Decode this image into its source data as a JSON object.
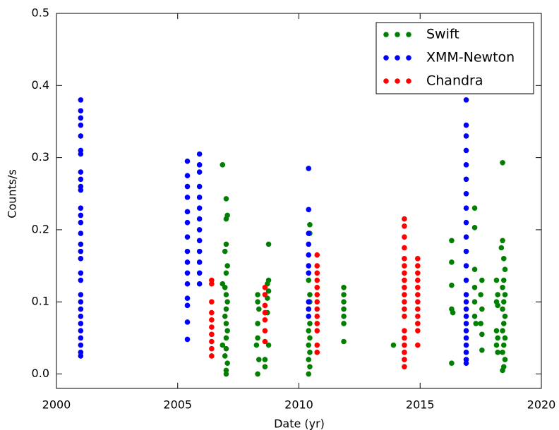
{
  "chart_data": {
    "type": "scatter",
    "xlabel": "Date (yr)",
    "ylabel": "Counts/s",
    "xlim": [
      2000,
      2020
    ],
    "xticks": [
      2000,
      2005,
      2010,
      2015,
      2020
    ],
    "ylim": [
      -0.02,
      0.5
    ],
    "yticks": [
      {
        "value": 0,
        "label": "0.0"
      },
      0.1,
      0.2,
      0.3,
      0.4,
      0.5
    ],
    "grid": false,
    "legend": "upper right",
    "series": [
      {
        "name": "Swift",
        "color": "#008000",
        "x": [
          2006.85,
          2007.0,
          2007.05,
          2007.0,
          2007.0,
          2006.95,
          2007.05,
          2007.0,
          2006.85,
          2006.95,
          2007.0,
          2007.05,
          2007.0,
          2006.95,
          2007.0,
          2007.05,
          2007.0,
          2006.85,
          2007.0,
          2006.95,
          2007.05,
          2007.0,
          2007.0,
          2008.3,
          2008.3,
          2008.35,
          2008.3,
          2008.3,
          2008.25,
          2008.35,
          2008.3,
          2008.75,
          2008.75,
          2008.7,
          2008.75,
          2008.7,
          2008.7,
          2008.75,
          2008.6,
          2008.6,
          2010.45,
          2010.45,
          2010.4,
          2010.45,
          2010.45,
          2010.4,
          2010.45,
          2010.4,
          2010.45,
          2010.4,
          2010.45,
          2010.4,
          2010.45,
          2010.4,
          2011.85,
          2011.85,
          2011.85,
          2011.85,
          2011.85,
          2011.85,
          2011.85,
          2013.9,
          2016.3,
          2016.3,
          2016.3,
          2016.3,
          2016.35,
          2016.3,
          2017.25,
          2017.25,
          2017.25,
          2017.25,
          2017.25,
          2017.25,
          2017.3,
          2017.55,
          2017.5,
          2017.55,
          2017.5,
          2017.55,
          2017.55,
          2018.15,
          2018.2,
          2018.15,
          2018.2,
          2018.15,
          2018.2,
          2018.15,
          2018.2,
          2018.4,
          2018.4,
          2018.35,
          2018.45,
          2018.5,
          2018.45,
          2018.4,
          2018.5,
          2018.45,
          2018.4,
          2018.5,
          2018.45,
          2018.4,
          2018.5,
          2018.45,
          2018.4,
          2018.5,
          2018.45,
          2018.4
        ],
        "values": [
          0.29,
          0.243,
          0.22,
          0.215,
          0.18,
          0.17,
          0.15,
          0.14,
          0.125,
          0.12,
          0.11,
          0.1,
          0.09,
          0.08,
          0.07,
          0.06,
          0.05,
          0.04,
          0.035,
          0.025,
          0.015,
          0.005,
          0,
          0.11,
          0.1,
          0.09,
          0.07,
          0.05,
          0.04,
          0.02,
          0,
          0.18,
          0.13,
          0.125,
          0.115,
          0.105,
          0.085,
          0.04,
          0.02,
          0.01,
          0.207,
          0.195,
          0.13,
          0.11,
          0.1,
          0.09,
          0.07,
          0.06,
          0.05,
          0.04,
          0.03,
          0.02,
          0.01,
          0,
          0.12,
          0.11,
          0.1,
          0.09,
          0.08,
          0.07,
          0.045,
          0.04,
          0.185,
          0.155,
          0.123,
          0.09,
          0.085,
          0.015,
          0.23,
          0.203,
          0.145,
          0.12,
          0.1,
          0.08,
          0.07,
          0.13,
          0.11,
          0.09,
          0.07,
          0.055,
          0.033,
          0.13,
          0.11,
          0.1,
          0.095,
          0.06,
          0.05,
          0.04,
          0.03,
          0.293,
          0.185,
          0.175,
          0.16,
          0.145,
          0.13,
          0.12,
          0.11,
          0.1,
          0.09,
          0.08,
          0.07,
          0.06,
          0.05,
          0.04,
          0.03,
          0.02,
          0.01,
          0.005
        ]
      },
      {
        "name": "XMM-Newton",
        "color": "#0000ff",
        "x": [
          2001.0,
          2001.0,
          2001.0,
          2001.0,
          2001.0,
          2001.0,
          2001.0,
          2001.0,
          2001.0,
          2001.0,
          2001.0,
          2001.0,
          2001.0,
          2001.0,
          2001.0,
          2001.0,
          2001.0,
          2001.0,
          2001.0,
          2001.0,
          2001.0,
          2001.0,
          2001.0,
          2001.0,
          2001.0,
          2001.0,
          2001.0,
          2001.0,
          2001.0,
          2001.0,
          2005.4,
          2005.4,
          2005.4,
          2005.4,
          2005.4,
          2005.4,
          2005.4,
          2005.4,
          2005.4,
          2005.4,
          2005.4,
          2005.4,
          2005.4,
          2005.4,
          2005.4,
          2005.9,
          2005.9,
          2005.9,
          2005.9,
          2005.9,
          2005.9,
          2005.9,
          2005.9,
          2005.9,
          2005.9,
          2005.9,
          2005.9,
          2005.9,
          2010.4,
          2010.4,
          2010.4,
          2010.4,
          2010.4,
          2010.4,
          2010.4,
          2010.4,
          2010.4,
          2010.4,
          2016.9,
          2016.9,
          2016.9,
          2016.9,
          2016.9,
          2016.9,
          2016.9,
          2016.9,
          2016.9,
          2016.9,
          2016.9,
          2016.9,
          2016.9,
          2016.9,
          2016.9,
          2016.9,
          2016.9,
          2016.9,
          2016.9,
          2016.9,
          2016.9,
          2016.9,
          2016.9,
          2016.9
        ],
        "values": [
          0.38,
          0.365,
          0.355,
          0.345,
          0.33,
          0.31,
          0.305,
          0.28,
          0.27,
          0.26,
          0.255,
          0.23,
          0.22,
          0.21,
          0.195,
          0.18,
          0.17,
          0.16,
          0.14,
          0.13,
          0.11,
          0.1,
          0.09,
          0.08,
          0.07,
          0.06,
          0.05,
          0.04,
          0.03,
          0.025,
          0.295,
          0.275,
          0.26,
          0.245,
          0.225,
          0.21,
          0.19,
          0.17,
          0.155,
          0.14,
          0.125,
          0.105,
          0.095,
          0.072,
          0.048,
          0.305,
          0.29,
          0.28,
          0.26,
          0.245,
          0.23,
          0.215,
          0.2,
          0.185,
          0.17,
          0.155,
          0.14,
          0.125,
          0.285,
          0.228,
          0.195,
          0.18,
          0.165,
          0.15,
          0.14,
          0.1,
          0.09,
          0.08,
          0.38,
          0.345,
          0.33,
          0.31,
          0.29,
          0.27,
          0.25,
          0.23,
          0.21,
          0.19,
          0.17,
          0.15,
          0.13,
          0.11,
          0.1,
          0.09,
          0.08,
          0.07,
          0.06,
          0.05,
          0.04,
          0.03,
          0.02,
          0.015
        ]
      },
      {
        "name": "Chandra",
        "color": "#ff0000",
        "x": [
          2006.4,
          2006.4,
          2006.4,
          2006.4,
          2006.4,
          2006.4,
          2006.4,
          2006.4,
          2006.4,
          2006.4,
          2008.6,
          2008.6,
          2008.6,
          2008.6,
          2008.6,
          2008.6,
          2008.6,
          2010.75,
          2010.75,
          2010.75,
          2010.75,
          2010.75,
          2010.75,
          2010.75,
          2010.75,
          2010.75,
          2010.75,
          2010.75,
          2010.75,
          2010.75,
          2014.35,
          2014.35,
          2014.35,
          2014.35,
          2014.35,
          2014.35,
          2014.35,
          2014.35,
          2014.35,
          2014.35,
          2014.35,
          2014.35,
          2014.35,
          2014.35,
          2014.35,
          2014.35,
          2014.35,
          2014.35,
          2014.35,
          2014.9,
          2014.9,
          2014.9,
          2014.9,
          2014.9,
          2014.9,
          2014.9,
          2014.9,
          2014.9,
          2014.9,
          2014.9,
          2014.9
        ],
        "values": [
          0.13,
          0.125,
          0.1,
          0.085,
          0.075,
          0.065,
          0.055,
          0.045,
          0.035,
          0.025,
          0.12,
          0.11,
          0.095,
          0.085,
          0.075,
          0.06,
          0.045,
          0.165,
          0.15,
          0.14,
          0.13,
          0.12,
          0.11,
          0.1,
          0.09,
          0.08,
          0.07,
          0.06,
          0.04,
          0.03,
          0.215,
          0.205,
          0.19,
          0.175,
          0.16,
          0.15,
          0.14,
          0.13,
          0.12,
          0.11,
          0.1,
          0.09,
          0.08,
          0.06,
          0.05,
          0.04,
          0.03,
          0.02,
          0.01,
          0.16,
          0.15,
          0.14,
          0.13,
          0.12,
          0.11,
          0.1,
          0.09,
          0.08,
          0.07,
          0.06,
          0.04
        ]
      }
    ]
  }
}
